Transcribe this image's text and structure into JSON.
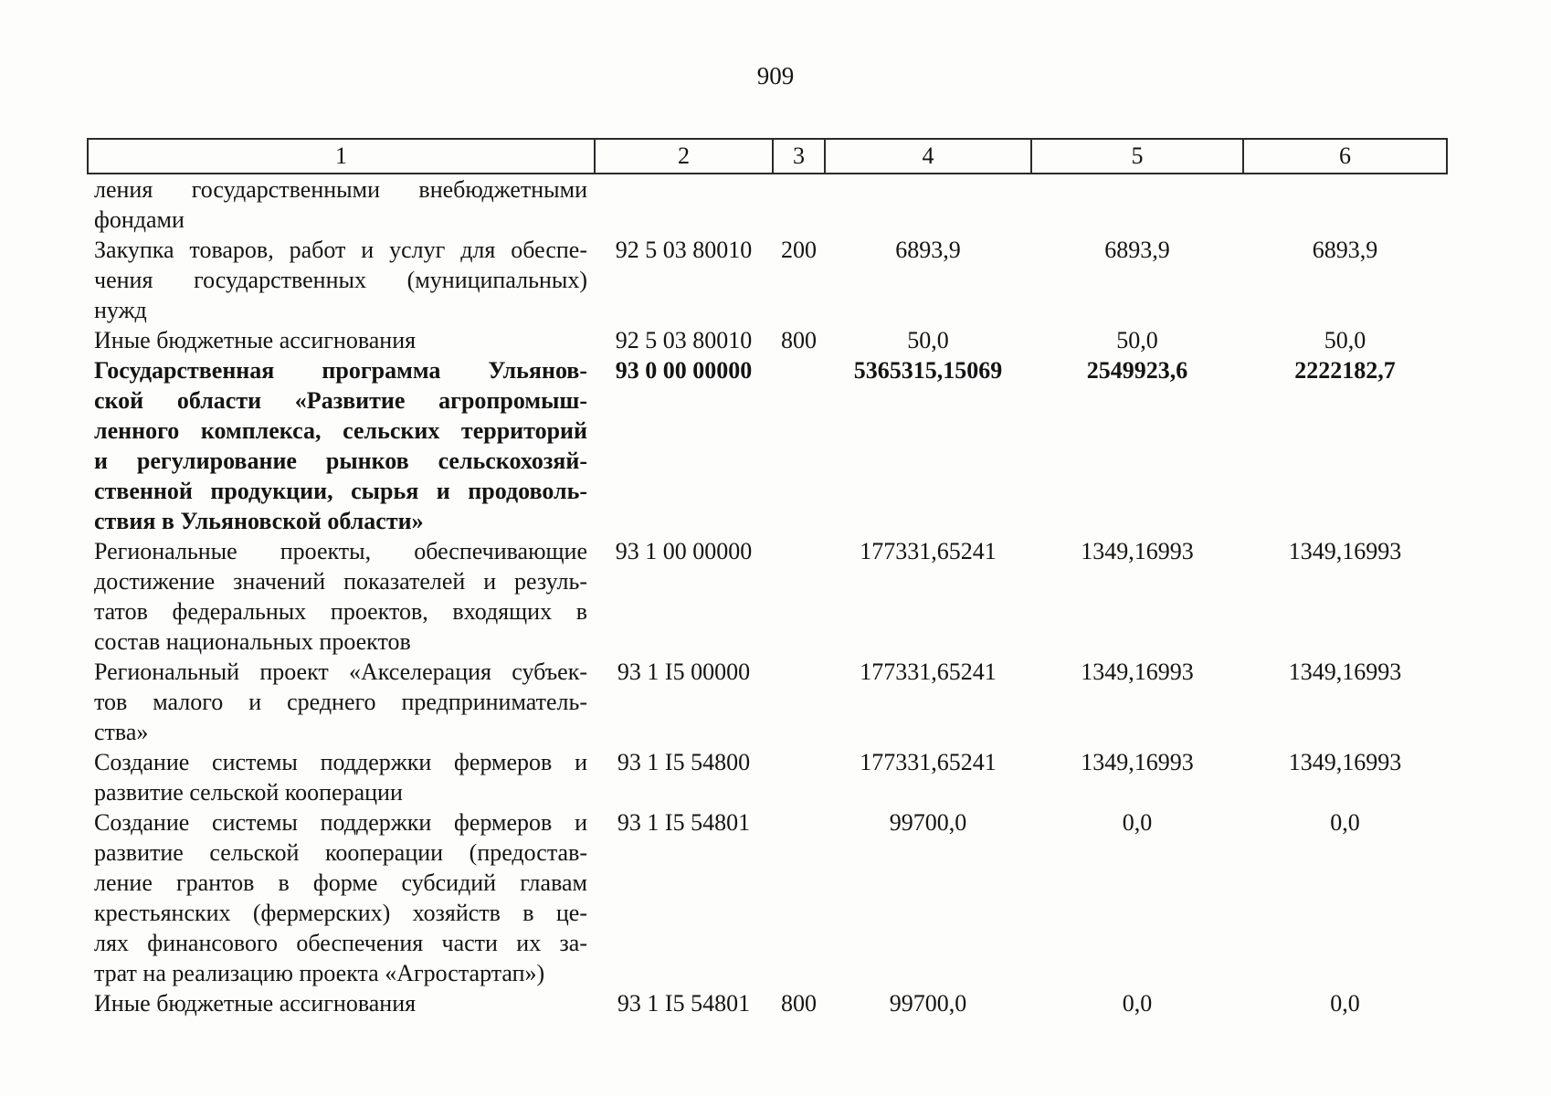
{
  "page": {
    "number": "909"
  },
  "table": {
    "header": [
      "1",
      "2",
      "3",
      "4",
      "5",
      "6"
    ],
    "rows": [
      {
        "name_lines": [
          "ления государственными внебюджетными",
          "фондами"
        ],
        "code": "",
        "vr": "",
        "amounts": [
          "",
          "",
          ""
        ],
        "bold": false
      },
      {
        "name_lines": [
          "Закупка товаров, работ и услуг для обеспе-",
          "чения государственных (муниципальных)",
          "нужд"
        ],
        "code": "92 5 03 80010",
        "vr": "200",
        "amounts": [
          "6893,9",
          "6893,9",
          "6893,9"
        ],
        "bold": false
      },
      {
        "name_lines": [
          "Иные бюджетные ассигнования"
        ],
        "code": "92 5 03 80010",
        "vr": "800",
        "amounts": [
          "50,0",
          "50,0",
          "50,0"
        ],
        "bold": false
      },
      {
        "name_lines": [
          "Государственная программа Ульянов-",
          "ской области «Развитие агропромыш-",
          "ленного комплекса, сельских территорий",
          "и регулирование рынков сельскохозяй-",
          "ственной продукции, сырья и продоволь-",
          "ствия в Ульяновской области»"
        ],
        "code": "93 0 00 00000",
        "vr": "",
        "amounts": [
          "5365315,15069",
          "2549923,6",
          "2222182,7"
        ],
        "bold": true
      },
      {
        "name_lines": [
          "Региональные проекты, обеспечивающие",
          "достижение значений показателей и резуль-",
          "татов федеральных проектов, входящих в",
          "состав национальных проектов"
        ],
        "code": "93 1 00 00000",
        "vr": "",
        "amounts": [
          "177331,65241",
          "1349,16993",
          "1349,16993"
        ],
        "bold": false
      },
      {
        "name_lines": [
          "Региональный проект «Акселерация субъек-",
          "тов малого и среднего предприниматель-",
          "ства»"
        ],
        "code": "93 1 I5 00000",
        "vr": "",
        "amounts": [
          "177331,65241",
          "1349,16993",
          "1349,16993"
        ],
        "bold": false
      },
      {
        "name_lines": [
          "Создание системы поддержки фермеров и",
          "развитие сельской кооперации"
        ],
        "code": "93 1 I5 54800",
        "vr": "",
        "amounts": [
          "177331,65241",
          "1349,16993",
          "1349,16993"
        ],
        "bold": false
      },
      {
        "name_lines": [
          "Создание системы поддержки фермеров и",
          "развитие сельской кооперации (предостав-",
          "ление грантов в форме субсидий главам",
          "крестьянских (фермерских) хозяйств в це-",
          "лях финансового обеспечения части их за-",
          "трат на реализацию проекта «Агростартап»)"
        ],
        "code": "93 1 I5 54801",
        "vr": "",
        "amounts": [
          "99700,0",
          "0,0",
          "0,0"
        ],
        "bold": false
      },
      {
        "name_lines": [
          "Иные бюджетные ассигнования"
        ],
        "code": "93 1 I5 54801",
        "vr": "800",
        "amounts": [
          "99700,0",
          "0,0",
          "0,0"
        ],
        "bold": false
      }
    ]
  }
}
